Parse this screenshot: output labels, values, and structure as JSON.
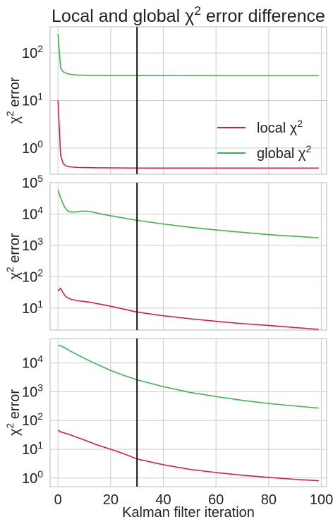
{
  "chart_data": [
    {
      "type": "line",
      "title": "Local and global χ² error difference",
      "xlabel": "",
      "ylabel": "χ² error",
      "xlim": [
        -3,
        102
      ],
      "ylog_range": [
        -0.55,
        2.55
      ],
      "yscale": "log",
      "x_ticks": [
        0,
        20,
        40,
        60,
        80,
        100
      ],
      "y_ticks": [
        {
          "value": 1,
          "base": "10",
          "exp": "0"
        },
        {
          "value": 10,
          "base": "10",
          "exp": "1"
        },
        {
          "value": 100,
          "base": "10",
          "exp": "2"
        }
      ],
      "vline_x": 30,
      "legend": "right",
      "series": [
        {
          "name": "local χ²",
          "color": "#d81b4f",
          "points": [
            [
              0,
              10
            ],
            [
              1,
              0.7
            ],
            [
              2,
              0.47
            ],
            [
              3,
              0.42
            ],
            [
              5,
              0.4
            ],
            [
              8,
              0.39
            ],
            [
              15,
              0.385
            ],
            [
              30,
              0.38
            ],
            [
              60,
              0.38
            ],
            [
              99,
              0.38
            ]
          ]
        },
        {
          "name": "global χ²",
          "color": "#3cb54a",
          "points": [
            [
              0,
              250
            ],
            [
              1,
              48
            ],
            [
              2,
              40
            ],
            [
              4,
              36
            ],
            [
              7,
              34.5
            ],
            [
              12,
              33.8
            ],
            [
              20,
              33.5
            ],
            [
              30,
              33.4
            ],
            [
              60,
              33.3
            ],
            [
              99,
              33.3
            ]
          ]
        }
      ]
    },
    {
      "type": "line",
      "title": "",
      "xlabel": "",
      "ylabel": "χ² error",
      "xlim": [
        -3,
        102
      ],
      "ylog_range": [
        0.3,
        5.0
      ],
      "yscale": "log",
      "x_ticks": [
        0,
        20,
        40,
        60,
        80,
        100
      ],
      "y_ticks": [
        {
          "value": 10,
          "base": "10",
          "exp": "1"
        },
        {
          "value": 100,
          "base": "10",
          "exp": "2"
        },
        {
          "value": 1000,
          "base": "10",
          "exp": "3"
        },
        {
          "value": 10000,
          "base": "10",
          "exp": "4"
        },
        {
          "value": 100000,
          "base": "10",
          "exp": "5"
        }
      ],
      "vline_x": 30,
      "series": [
        {
          "name": "",
          "color": "#d81b4f",
          "points": [
            [
              0,
              35
            ],
            [
              1,
              43
            ],
            [
              2,
              30
            ],
            [
              3,
              23
            ],
            [
              5,
              19
            ],
            [
              8,
              17
            ],
            [
              12,
              15.5
            ],
            [
              20,
              11.5
            ],
            [
              30,
              7.5
            ],
            [
              40,
              5.7
            ],
            [
              50,
              4.6
            ],
            [
              60,
              3.8
            ],
            [
              70,
              3.2
            ],
            [
              80,
              2.8
            ],
            [
              90,
              2.4
            ],
            [
              99,
              2.1
            ]
          ]
        },
        {
          "name": "",
          "color": "#3cb54a",
          "points": [
            [
              0,
              58000
            ],
            [
              1,
              33000
            ],
            [
              2,
              20000
            ],
            [
              3,
              14500
            ],
            [
              4,
              12000
            ],
            [
              6,
              11500
            ],
            [
              9,
              12400
            ],
            [
              12,
              12200
            ],
            [
              15,
              10600
            ],
            [
              20,
              8800
            ],
            [
              30,
              6300
            ],
            [
              40,
              4800
            ],
            [
              50,
              3800
            ],
            [
              60,
              3100
            ],
            [
              70,
              2600
            ],
            [
              80,
              2200
            ],
            [
              90,
              1950
            ],
            [
              99,
              1750
            ]
          ]
        }
      ]
    },
    {
      "type": "line",
      "title": "",
      "xlabel": "Kalman filter iteration",
      "ylabel": "χ² error",
      "xlim": [
        -3,
        102
      ],
      "ylog_range": [
        -0.3,
        4.85
      ],
      "yscale": "log",
      "x_ticks": [
        0,
        20,
        40,
        60,
        80,
        100
      ],
      "y_ticks": [
        {
          "value": 1,
          "base": "10",
          "exp": "0"
        },
        {
          "value": 10,
          "base": "10",
          "exp": "1"
        },
        {
          "value": 100,
          "base": "10",
          "exp": "2"
        },
        {
          "value": 1000,
          "base": "10",
          "exp": "3"
        },
        {
          "value": 10000,
          "base": "10",
          "exp": "4"
        }
      ],
      "vline_x": 30,
      "series": [
        {
          "name": "",
          "color": "#d81b4f",
          "points": [
            [
              0,
              46
            ],
            [
              1,
              40
            ],
            [
              2,
              38
            ],
            [
              5,
              31
            ],
            [
              10,
              21
            ],
            [
              15,
              14
            ],
            [
              20,
              10
            ],
            [
              25,
              7
            ],
            [
              30,
              4.6
            ],
            [
              40,
              2.9
            ],
            [
              50,
              2.0
            ],
            [
              60,
              1.55
            ],
            [
              70,
              1.25
            ],
            [
              80,
              1.05
            ],
            [
              90,
              0.9
            ],
            [
              99,
              0.8
            ]
          ]
        },
        {
          "name": "",
          "color": "#3cb54a",
          "points": [
            [
              0,
              40000
            ],
            [
              1,
              40000
            ],
            [
              2,
              36000
            ],
            [
              5,
              25000
            ],
            [
              10,
              14500
            ],
            [
              15,
              8800
            ],
            [
              20,
              5500
            ],
            [
              25,
              3700
            ],
            [
              30,
              2600
            ],
            [
              40,
              1500
            ],
            [
              50,
              950
            ],
            [
              60,
              680
            ],
            [
              70,
              500
            ],
            [
              80,
              390
            ],
            [
              90,
              320
            ],
            [
              99,
              270
            ]
          ]
        }
      ]
    }
  ]
}
